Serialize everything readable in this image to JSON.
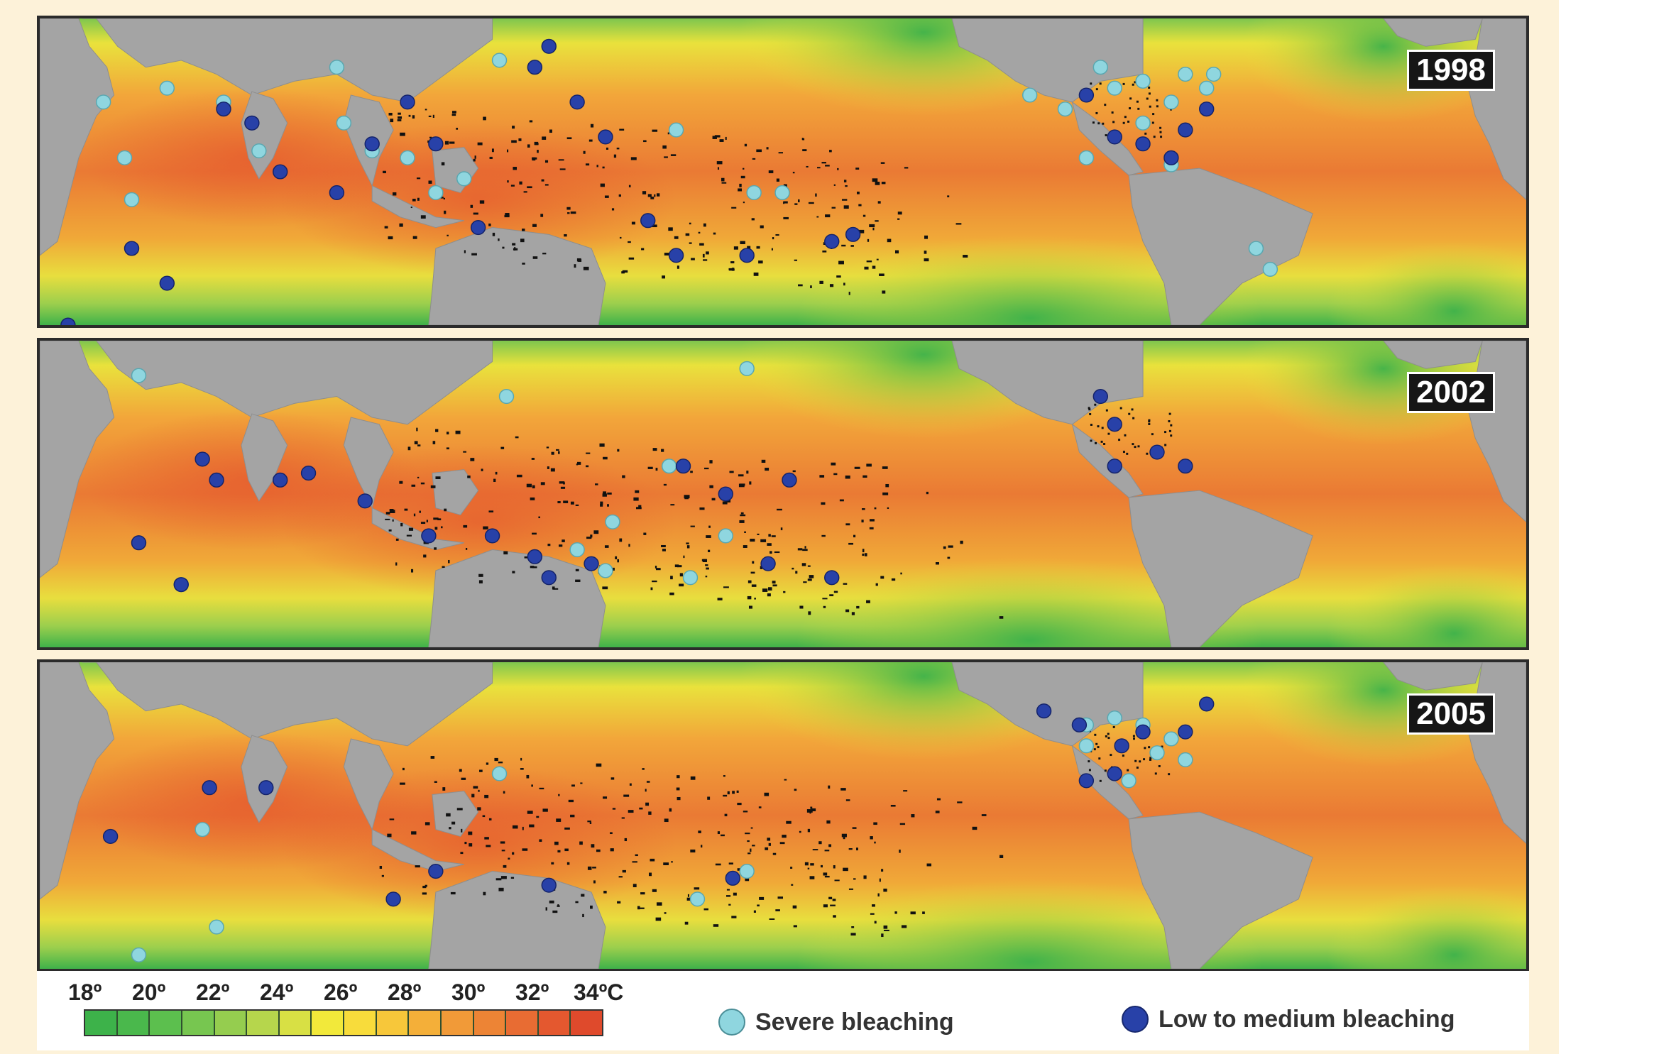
{
  "figure": {
    "panels": [
      {
        "year": "1998"
      },
      {
        "year": "2002"
      },
      {
        "year": "2005"
      }
    ],
    "colorbar": {
      "tick_labels": [
        "18º",
        "20º",
        "22º",
        "24º",
        "26º",
        "28º",
        "30º",
        "32º",
        "34ºC"
      ],
      "colors": [
        "#3db24a",
        "#4ab84c",
        "#5cbf4e",
        "#77c650",
        "#95cd4f",
        "#b6d64c",
        "#d8e044",
        "#f2e93a",
        "#f8dc3b",
        "#f7c73a",
        "#f4af39",
        "#f19a38",
        "#ed8435",
        "#e86c33",
        "#e4582f",
        "#df4a2c"
      ]
    },
    "legend": [
      {
        "label": "Severe bleaching",
        "color": "#8fd6df"
      },
      {
        "label": "Low to medium bleaching",
        "color": "#2841a8"
      }
    ]
  }
}
